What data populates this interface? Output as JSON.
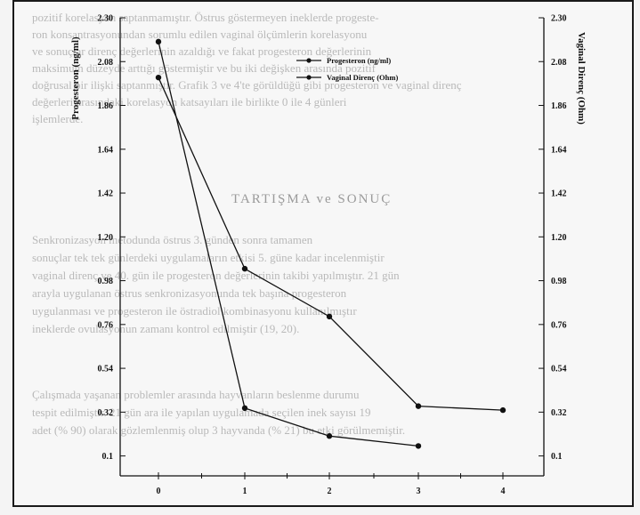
{
  "background_text": {
    "heading": "TARTIŞMA ve SONUÇ",
    "lines_top": [
      "pozitif korelasyon saptanmamıştır. Östrus göstermeyen ineklerde progeste-",
      "ron konsantrasyonundan sorumlu edilen vaginal ölçümlerin korelasyonu",
      "ve sonuçlar direnç değerlerinin azaldığı ve fakat progesteron değerlerinin",
      "maksimum düzeyde arttığı göstermiştir ve bu iki değişken arasında pozitif",
      "doğrusal bir ilişki saptanmıştır. Grafik 3 ve 4'te görüldüğü gibi progesteron ve vaginal direnç",
      "değerleri arasındaki korelasyon katsayıları ile birlikte 0 ile 4 günleri",
      "işlemlerde."
    ],
    "lines_mid": [
      "Senkronizasyon metodunda östrus 3. günden sonra tamamen",
      "sonuçlar tek tek günlerdeki uygulamaların etkisi 5. güne kadar incelenmiştir",
      "vaginal direnç ve 40. gün ile progesteron değerlerinin takibi yapılmıştır. 21 gün",
      "arayla uygulanan östrus senkronizasyonunda tek başına progesteron",
      "uygulanması ve progesteron ile östradiol kombinasyonu kullanılmıştır",
      "ineklerde ovulasyonun zamanı kontrol edilmiştir (19, 20)."
    ],
    "lines_bottom": [
      "Çalışmada yaşanan problemler arasında hayvanların beslenme durumu",
      "tespit edilmiştir. 21 gün ara ile yapılan uygulamada seçilen inek sayısı 19",
      "adet (% 90) olarak gözlemlenmiş olup 3 hayvanda (% 21) bu etki görülmemiştir."
    ]
  },
  "chart_data": {
    "type": "line",
    "title": "",
    "x": [
      0,
      1,
      2,
      3,
      4
    ],
    "x_tick_labels": [
      "0",
      "1",
      "2",
      "3",
      "4"
    ],
    "xlabel": "",
    "ylabel_left": "Progesteron (ng/ml)",
    "ylabel_right": "Vaginal Direnç (Ohm)",
    "y_ticks": [
      0.1,
      0.32,
      0.54,
      0.76,
      0.98,
      1.2,
      1.42,
      1.64,
      1.86,
      2.08,
      2.3
    ],
    "y_tick_labels": [
      "0.1",
      "0.32",
      "0.54",
      "0.76",
      "0.98",
      "1.20",
      "1.42",
      "1.64",
      "1.86",
      "2.08",
      "2.30"
    ],
    "ylim": [
      0.0,
      2.3
    ],
    "grid": false,
    "legend_position": "top-right",
    "series": [
      {
        "name": "Progesteron (ng/ml)",
        "values": [
          2.18,
          0.34,
          0.2,
          0.15,
          null
        ],
        "color": "#111111"
      },
      {
        "name": "Vaginal Direnç (Ohm)",
        "values": [
          2.0,
          1.04,
          0.8,
          0.35,
          0.33
        ],
        "color": "#111111"
      }
    ]
  }
}
